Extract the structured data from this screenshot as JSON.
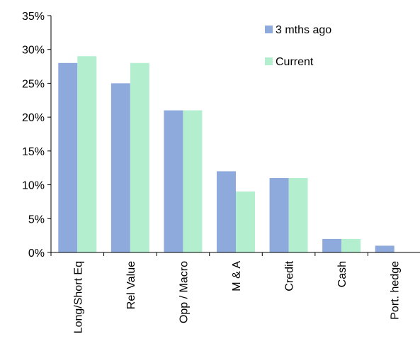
{
  "chart_data": {
    "type": "bar",
    "title": "",
    "xlabel": "",
    "ylabel": "",
    "ylim": [
      0,
      35
    ],
    "y_ticks": [
      {
        "value": 0,
        "label": "0%"
      },
      {
        "value": 5,
        "label": "5%"
      },
      {
        "value": 10,
        "label": "10%"
      },
      {
        "value": 15,
        "label": "15%"
      },
      {
        "value": 20,
        "label": "20%"
      },
      {
        "value": 25,
        "label": "25%"
      },
      {
        "value": 30,
        "label": "30%"
      },
      {
        "value": 35,
        "label": "35%"
      }
    ],
    "categories": [
      "Long/Short Eq",
      "Rel Value",
      "Opp / Macro",
      "M & A",
      "Credit",
      "Cash",
      "Port. hedge"
    ],
    "series": [
      {
        "name": "3 mths ago",
        "color": "#8EA9DB",
        "values": [
          28,
          25,
          21,
          12,
          11,
          2,
          1
        ]
      },
      {
        "name": "Current",
        "color": "#B3EFCF",
        "values": [
          29,
          28,
          21,
          9,
          11,
          2,
          0
        ]
      }
    ],
    "grid": false,
    "legend_position": "top-right",
    "x_tick_label_rotation": "vertical"
  }
}
